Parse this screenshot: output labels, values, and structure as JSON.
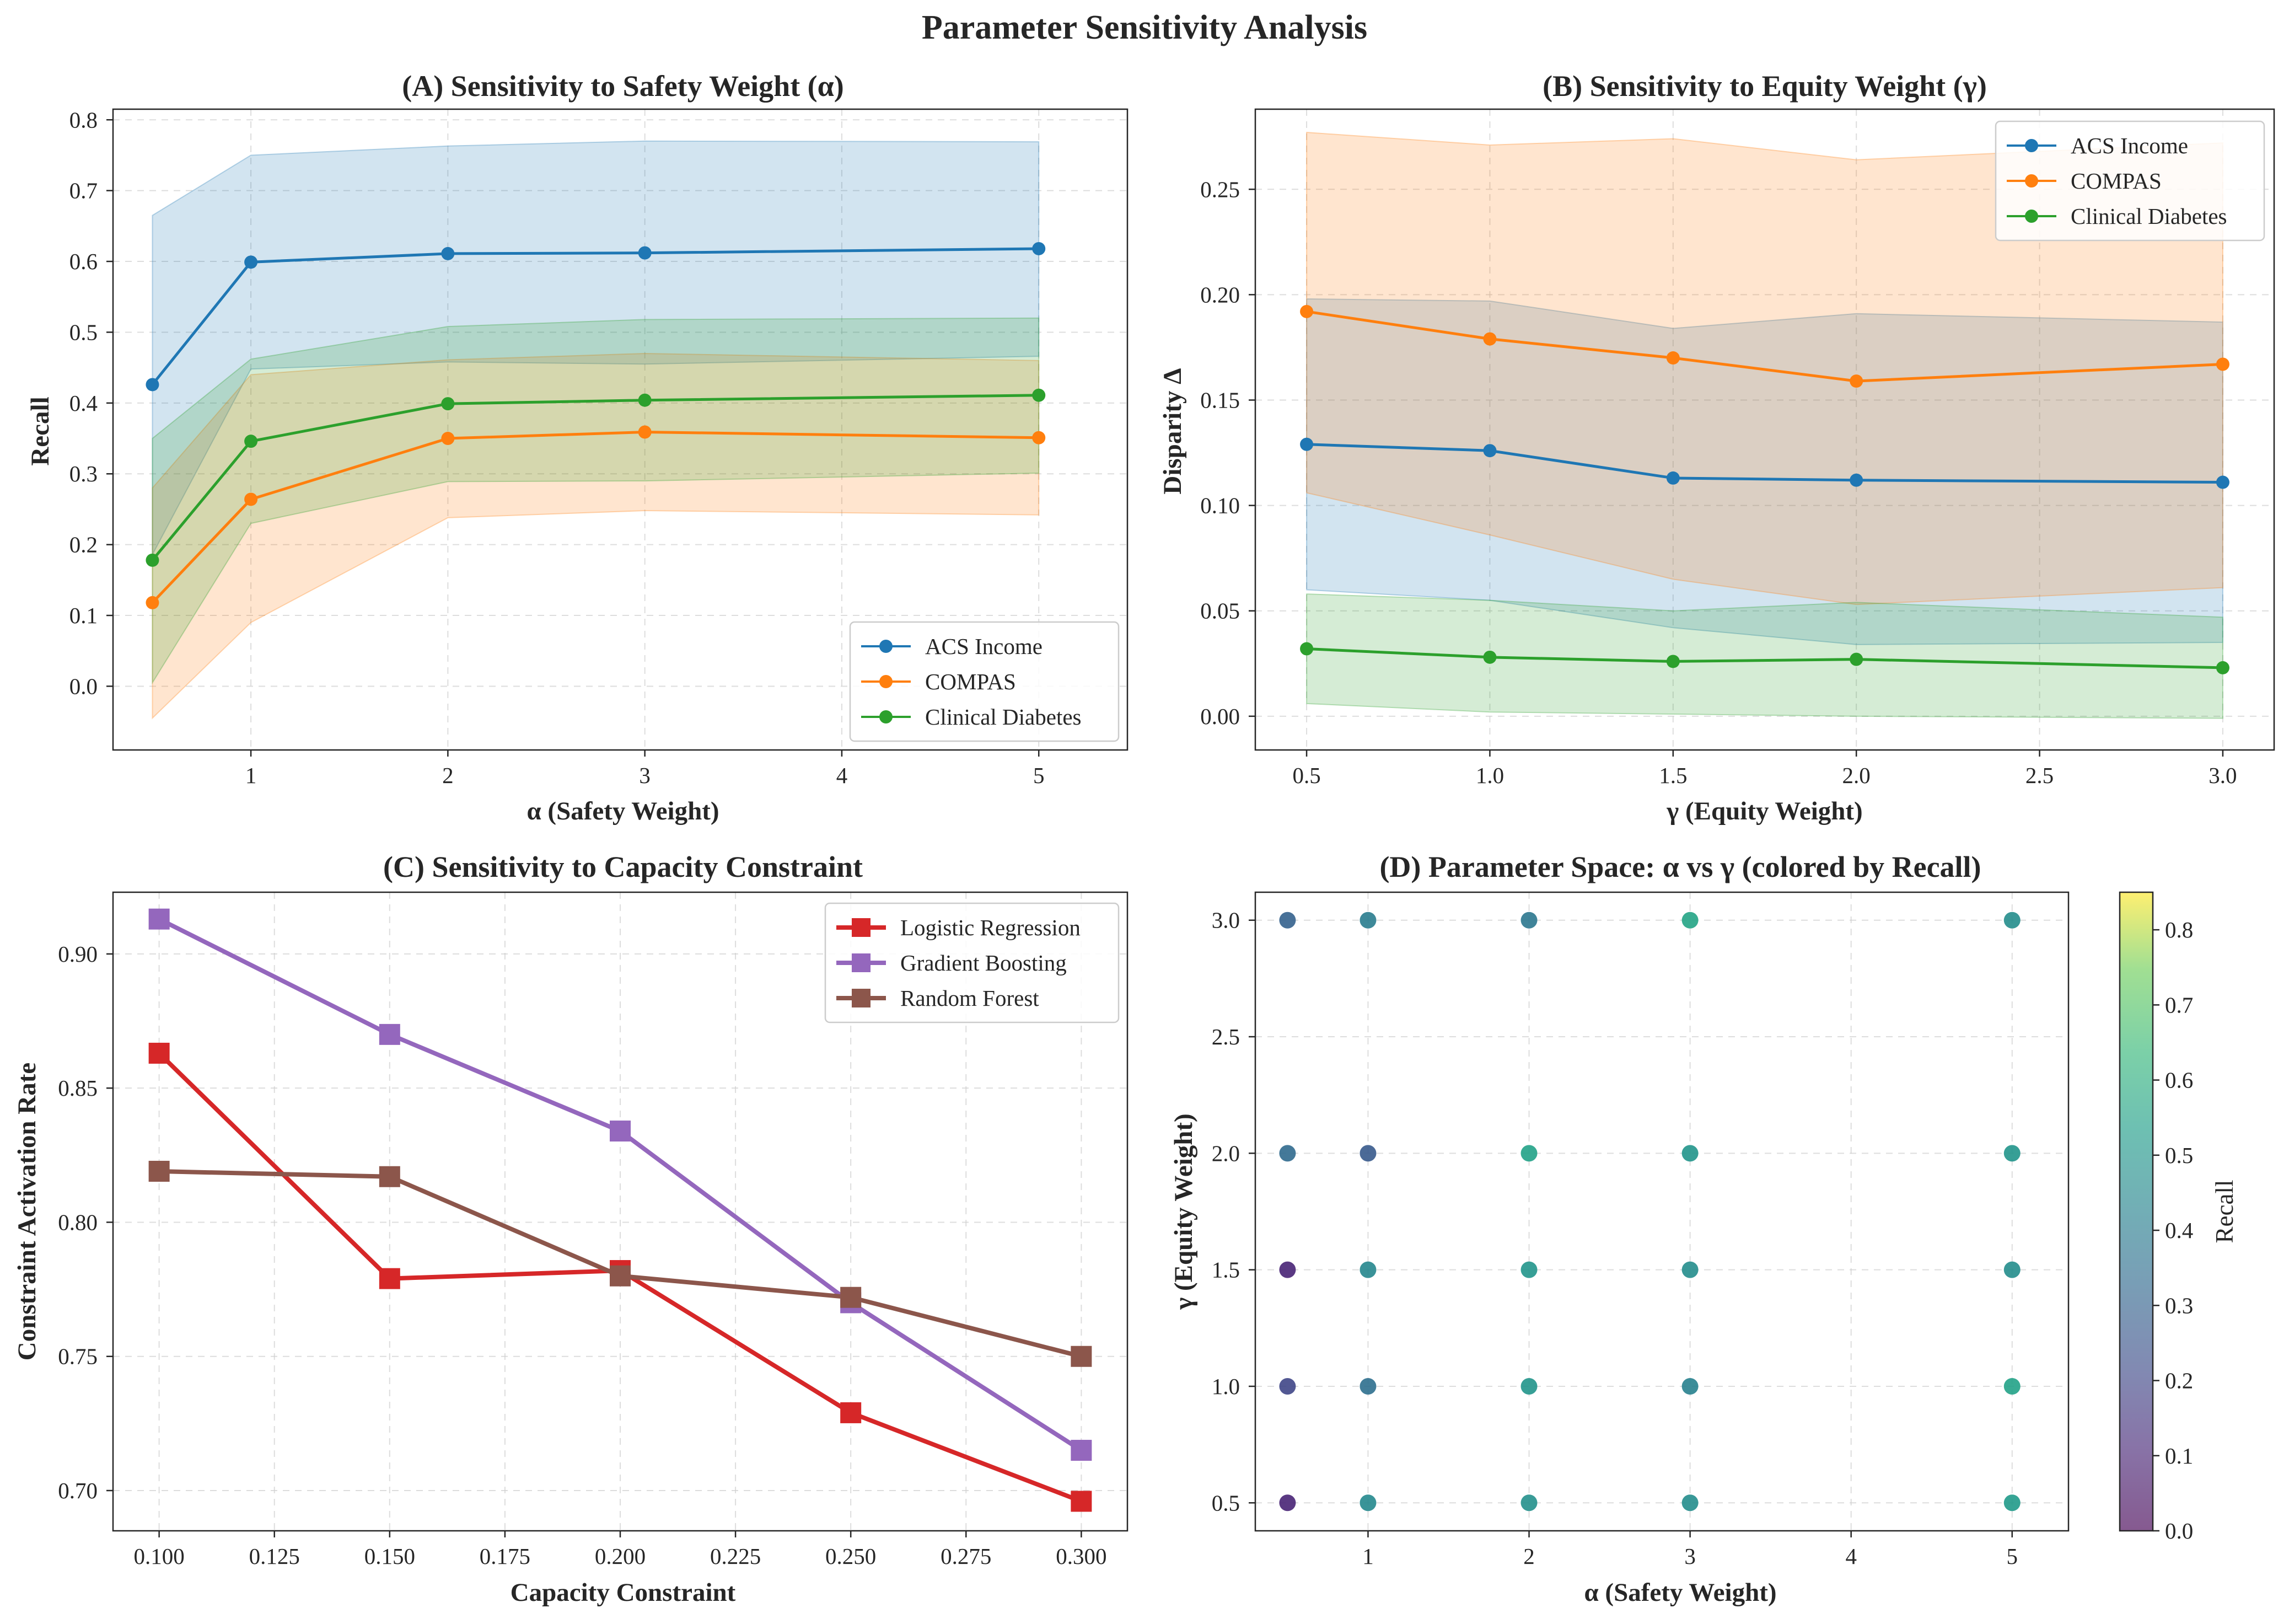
{
  "figure_title": "Parameter Sensitivity Analysis",
  "colors": {
    "acs": "#1f77b4",
    "compas": "#ff7f0e",
    "diabetes": "#2ca02c",
    "logreg": "#d62728",
    "gboost": "#9467bd",
    "rforest": "#8c564b"
  },
  "chart_data": [
    {
      "panel": "A",
      "type": "line",
      "title": "(A) Sensitivity to Safety Weight (α)",
      "xlabel": "α (Safety Weight)",
      "ylabel": "Recall",
      "xlim": [
        0.3,
        5.45
      ],
      "ylim": [
        -0.09,
        0.815
      ],
      "xticks": [
        1,
        2,
        3,
        4,
        5
      ],
      "xtick_labels": [
        "1",
        "2",
        "3",
        "4",
        "5"
      ],
      "yticks": [
        0.0,
        0.1,
        0.2,
        0.3,
        0.4,
        0.5,
        0.6,
        0.7,
        0.8
      ],
      "ytick_labels": [
        "0.0",
        "0.1",
        "0.2",
        "0.3",
        "0.4",
        "0.5",
        "0.6",
        "0.7",
        "0.8"
      ],
      "legend_position": "lower-right",
      "grid": true,
      "x": [
        0.5,
        1,
        2,
        3,
        5
      ],
      "series": [
        {
          "name": "ACS Income",
          "color_key": "acs",
          "values": [
            0.426,
            0.599,
            0.611,
            0.612,
            0.618
          ],
          "lower": [
            0.186,
            0.448,
            0.458,
            0.455,
            0.466
          ],
          "upper": [
            0.665,
            0.75,
            0.763,
            0.77,
            0.769
          ]
        },
        {
          "name": "COMPAS",
          "color_key": "compas",
          "values": [
            0.118,
            0.264,
            0.35,
            0.359,
            0.351
          ],
          "lower": [
            -0.045,
            0.09,
            0.238,
            0.248,
            0.242
          ],
          "upper": [
            0.28,
            0.44,
            0.461,
            0.47,
            0.46
          ]
        },
        {
          "name": "Clinical Diabetes",
          "color_key": "diabetes",
          "values": [
            0.178,
            0.346,
            0.399,
            0.404,
            0.411
          ],
          "lower": [
            0.005,
            0.23,
            0.289,
            0.29,
            0.301
          ],
          "upper": [
            0.35,
            0.462,
            0.508,
            0.518,
            0.52
          ]
        }
      ]
    },
    {
      "panel": "B",
      "type": "line",
      "title": "(B) Sensitivity to Equity Weight (γ)",
      "xlabel": "γ (Equity Weight)",
      "ylabel": "Disparity Δ",
      "xlim": [
        0.36,
        3.14
      ],
      "ylim": [
        -0.016,
        0.288
      ],
      "xticks": [
        0.5,
        1.0,
        1.5,
        2.0,
        2.5,
        3.0
      ],
      "xtick_labels": [
        "0.5",
        "1.0",
        "1.5",
        "2.0",
        "2.5",
        "3.0"
      ],
      "yticks": [
        0.0,
        0.05,
        0.1,
        0.15,
        0.2,
        0.25
      ],
      "ytick_labels": [
        "0.00",
        "0.05",
        "0.10",
        "0.15",
        "0.20",
        "0.25"
      ],
      "legend_position": "upper-right",
      "grid": true,
      "x": [
        0.5,
        1.0,
        1.5,
        2.0,
        3.0
      ],
      "series": [
        {
          "name": "ACS Income",
          "color_key": "acs",
          "values": [
            0.129,
            0.126,
            0.113,
            0.112,
            0.111
          ],
          "lower": [
            0.06,
            0.055,
            0.042,
            0.034,
            0.035
          ],
          "upper": [
            0.198,
            0.197,
            0.184,
            0.191,
            0.187
          ]
        },
        {
          "name": "COMPAS",
          "color_key": "compas",
          "values": [
            0.192,
            0.179,
            0.17,
            0.159,
            0.167
          ],
          "lower": [
            0.106,
            0.086,
            0.065,
            0.053,
            0.061
          ],
          "upper": [
            0.277,
            0.271,
            0.274,
            0.264,
            0.272
          ]
        },
        {
          "name": "Clinical Diabetes",
          "color_key": "diabetes",
          "values": [
            0.032,
            0.028,
            0.026,
            0.027,
            0.023
          ],
          "lower": [
            0.006,
            0.002,
            0.001,
            0.0,
            -0.001
          ],
          "upper": [
            0.058,
            0.055,
            0.05,
            0.054,
            0.047
          ]
        }
      ]
    },
    {
      "panel": "C",
      "type": "line",
      "title": "(C) Sensitivity to Capacity Constraint",
      "xlabel": "Capacity Constraint",
      "ylabel": "Constraint Activation Rate",
      "xlim": [
        0.09,
        0.31
      ],
      "ylim": [
        0.685,
        0.923
      ],
      "xticks": [
        0.1,
        0.125,
        0.15,
        0.175,
        0.2,
        0.225,
        0.25,
        0.275,
        0.3
      ],
      "xtick_labels": [
        "0.100",
        "0.125",
        "0.150",
        "0.175",
        "0.200",
        "0.225",
        "0.250",
        "0.275",
        "0.300"
      ],
      "yticks": [
        0.7,
        0.75,
        0.8,
        0.85,
        0.9
      ],
      "ytick_labels": [
        "0.70",
        "0.75",
        "0.80",
        "0.85",
        "0.90"
      ],
      "legend_position": "upper-right",
      "grid": true,
      "x": [
        0.1,
        0.15,
        0.2,
        0.25,
        0.3
      ],
      "series": [
        {
          "name": "Logistic Regression",
          "color_key": "logreg",
          "values": [
            0.863,
            0.779,
            0.782,
            0.729,
            0.696
          ]
        },
        {
          "name": "Gradient Boosting",
          "color_key": "gboost",
          "values": [
            0.913,
            0.87,
            0.834,
            0.77,
            0.715
          ]
        },
        {
          "name": "Random Forest",
          "color_key": "rforest",
          "values": [
            0.819,
            0.817,
            0.78,
            0.772,
            0.75
          ]
        }
      ]
    },
    {
      "panel": "D",
      "type": "scatter",
      "title": "(D) Parameter Space: α vs γ (colored by Recall)",
      "xlabel": "α (Safety Weight)",
      "ylabel": "γ (Equity Weight)",
      "xlim": [
        0.3,
        5.35
      ],
      "ylim": [
        0.38,
        3.12
      ],
      "xticks": [
        1,
        2,
        3,
        4,
        5
      ],
      "xtick_labels": [
        "1",
        "2",
        "3",
        "4",
        "5"
      ],
      "yticks": [
        0.5,
        1.0,
        1.5,
        2.0,
        2.5,
        3.0
      ],
      "ytick_labels": [
        "0.5",
        "1.0",
        "1.5",
        "2.0",
        "2.5",
        "3.0"
      ],
      "grid": true,
      "colorbar": {
        "label": "Recall",
        "range": [
          0.0,
          0.85
        ],
        "ticks": [
          0.0,
          0.1,
          0.2,
          0.3,
          0.4,
          0.5,
          0.6,
          0.7,
          0.8
        ],
        "tick_labels": [
          "0.0",
          "0.1",
          "0.2",
          "0.3",
          "0.4",
          "0.5",
          "0.6",
          "0.7",
          "0.8"
        ],
        "colormap": "viridis"
      },
      "points": [
        {
          "x": 0.5,
          "y": 0.5,
          "recall": 0.1
        },
        {
          "x": 0.5,
          "y": 1.0,
          "recall": 0.2
        },
        {
          "x": 0.5,
          "y": 1.5,
          "recall": 0.1
        },
        {
          "x": 0.5,
          "y": 2.0,
          "recall": 0.33
        },
        {
          "x": 0.5,
          "y": 3.0,
          "recall": 0.3
        },
        {
          "x": 1,
          "y": 0.5,
          "recall": 0.45
        },
        {
          "x": 1,
          "y": 1.0,
          "recall": 0.35
        },
        {
          "x": 1,
          "y": 1.5,
          "recall": 0.44
        },
        {
          "x": 1,
          "y": 2.0,
          "recall": 0.27
        },
        {
          "x": 1,
          "y": 3.0,
          "recall": 0.4
        },
        {
          "x": 2,
          "y": 0.5,
          "recall": 0.48
        },
        {
          "x": 2,
          "y": 1.0,
          "recall": 0.5
        },
        {
          "x": 2,
          "y": 1.5,
          "recall": 0.5
        },
        {
          "x": 2,
          "y": 2.0,
          "recall": 0.55
        },
        {
          "x": 2,
          "y": 3.0,
          "recall": 0.38
        },
        {
          "x": 3,
          "y": 0.5,
          "recall": 0.47
        },
        {
          "x": 3,
          "y": 1.0,
          "recall": 0.42
        },
        {
          "x": 3,
          "y": 1.5,
          "recall": 0.47
        },
        {
          "x": 3,
          "y": 2.0,
          "recall": 0.5
        },
        {
          "x": 3,
          "y": 3.0,
          "recall": 0.56
        },
        {
          "x": 5,
          "y": 0.5,
          "recall": 0.52
        },
        {
          "x": 5,
          "y": 1.0,
          "recall": 0.55
        },
        {
          "x": 5,
          "y": 1.5,
          "recall": 0.47
        },
        {
          "x": 5,
          "y": 2.0,
          "recall": 0.5
        },
        {
          "x": 5,
          "y": 3.0,
          "recall": 0.47
        }
      ]
    }
  ]
}
